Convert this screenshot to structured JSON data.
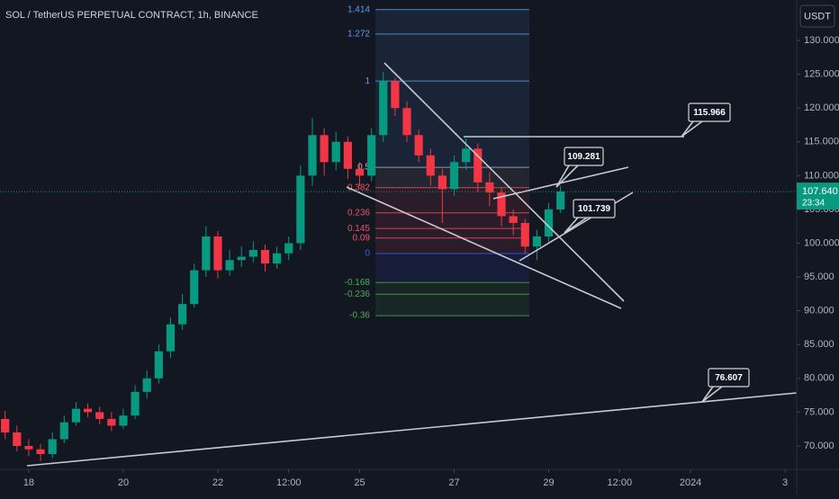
{
  "chart_data": {
    "type": "candlestick",
    "title": "SOL / TetherUS PERPETUAL CONTRACT, 1h, BINANCE",
    "currency": "USDT",
    "x": [
      -12,
      -6,
      0,
      6,
      12,
      18,
      24,
      30,
      36,
      42,
      48,
      54,
      60,
      66,
      72,
      78,
      84,
      90,
      96,
      102,
      108,
      114,
      120,
      126,
      132,
      138,
      144,
      150,
      156,
      162,
      168,
      174,
      180,
      186,
      192,
      198,
      204,
      210,
      216,
      222,
      228,
      234,
      240,
      246,
      252,
      258,
      264,
      270
    ],
    "open": [
      74,
      72,
      70,
      69.5,
      68.8,
      71,
      73.5,
      75.5,
      75,
      74,
      73,
      74.5,
      78,
      80,
      84,
      88,
      91,
      96,
      101,
      96,
      97.5,
      98,
      99,
      97,
      98.5,
      100,
      110,
      116,
      112,
      115,
      111,
      110,
      116,
      124,
      120,
      116,
      113,
      110,
      108,
      112,
      114,
      109,
      107.5,
      104,
      103,
      99.5,
      101,
      105
    ],
    "high": [
      75.2,
      73,
      71,
      70.3,
      72,
      74.5,
      76.5,
      76.3,
      75.8,
      75,
      75.5,
      79,
      81.2,
      85,
      89,
      92.5,
      97,
      102.5,
      101.8,
      99,
      99.5,
      100.3,
      99.8,
      99.5,
      101,
      111.5,
      118.5,
      117,
      116.5,
      115.8,
      112,
      117,
      125.3,
      124.5,
      121,
      116.8,
      114,
      111,
      113,
      115.5,
      114.8,
      110.5,
      108.2,
      105,
      103.6,
      102,
      106,
      108.5
    ],
    "low": [
      71,
      69.2,
      68.5,
      67.8,
      68.2,
      70.4,
      73,
      74.2,
      73.2,
      72.2,
      72.5,
      74,
      77,
      79.2,
      83,
      87.2,
      90.5,
      95,
      94.8,
      95.2,
      96.5,
      97.2,
      95.8,
      96.2,
      97.5,
      99,
      108.5,
      110,
      110.8,
      109.5,
      108.5,
      109.2,
      115,
      118.8,
      115,
      112,
      108.5,
      103,
      107,
      110.8,
      107.5,
      105.5,
      102.5,
      101.2,
      98.5,
      97.5,
      100.2,
      104.5
    ],
    "close": [
      72,
      70,
      69.5,
      68.8,
      71,
      73.5,
      75.5,
      75,
      74,
      73,
      74.5,
      78,
      80,
      84,
      88,
      91,
      96,
      101,
      96,
      97.5,
      98,
      99,
      97,
      98.5,
      100,
      110,
      116,
      112,
      115,
      111,
      110,
      116,
      124,
      120,
      116,
      113,
      110,
      108,
      112,
      114,
      109,
      107.5,
      104,
      103,
      99.5,
      101,
      105,
      107.64
    ],
    "up_color": "#089981",
    "down_color": "#f23645",
    "xlim": [
      -14.6,
      389.9
    ],
    "xticks": [
      {
        "value": 0,
        "label": "18"
      },
      {
        "value": 48,
        "label": "20"
      },
      {
        "value": 96,
        "label": "22"
      },
      {
        "value": 132,
        "label": "12:00"
      },
      {
        "value": 168,
        "label": "25"
      },
      {
        "value": 216,
        "label": "27"
      },
      {
        "value": 264,
        "label": "29"
      },
      {
        "value": 300,
        "label": "12:00"
      },
      {
        "value": 336,
        "label": "2024"
      },
      {
        "value": 384,
        "label": "3"
      }
    ],
    "ylim": [
      66.54,
      135.99
    ],
    "yticks": [
      {
        "value": 70,
        "label": "70.000"
      },
      {
        "value": 75,
        "label": "75.000"
      },
      {
        "value": 80,
        "label": "80.000"
      },
      {
        "value": 85,
        "label": "85.000"
      },
      {
        "value": 90,
        "label": "90.000"
      },
      {
        "value": 95,
        "label": "95.000"
      },
      {
        "value": 100,
        "label": "100.000"
      },
      {
        "value": 105,
        "label": "105.000"
      },
      {
        "value": 110,
        "label": "110.000"
      },
      {
        "value": 115,
        "label": "115.000"
      },
      {
        "value": 120,
        "label": "120.000"
      },
      {
        "value": 125,
        "label": "125.000"
      },
      {
        "value": 130,
        "label": "130.000"
      }
    ],
    "last_price": {
      "value": 107.64,
      "label": "107.640"
    },
    "countdown": "23:34",
    "fib": {
      "range": [
        98.47,
        124.0
      ],
      "levels": [
        1.414,
        1.272,
        1,
        0.5,
        0.382,
        0.236,
        0.145,
        0.09,
        0,
        -0.168,
        -0.236,
        -0.36
      ],
      "colors": [
        "#5b9cf6",
        "#5b9cf6",
        "#5b9cf6",
        "#b2b5be",
        "#f7525f",
        "#f7525f",
        "#f7525f",
        "#f7525f",
        "#3d5afe",
        "#4caf50",
        "#4caf50",
        "#4caf50"
      ]
    },
    "annotations": [
      115.966,
      109.281,
      101.739,
      76.607
    ]
  }
}
